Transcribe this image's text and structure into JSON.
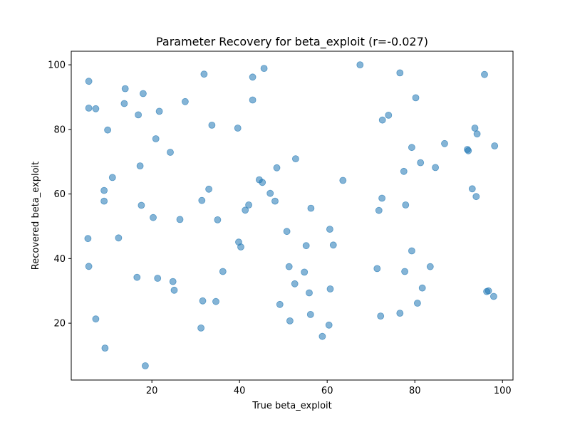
{
  "chart_data": {
    "type": "scatter",
    "title": "Parameter Recovery for beta_exploit (r=-0.027)",
    "xlabel": "True beta_exploit",
    "ylabel": "Recovered beta_exploit",
    "xlim": [
      1.6,
      102.4
    ],
    "ylim": [
      2.4,
      104.2
    ],
    "xticks": [
      20,
      40,
      60,
      80,
      100
    ],
    "yticks": [
      20,
      40,
      60,
      80,
      100
    ],
    "grid": false,
    "marker_color": "#1f77b4",
    "marker_alpha": 0.55,
    "points": [
      [
        5.6,
        94.9
      ],
      [
        5.6,
        86.6
      ],
      [
        7.2,
        86.4
      ],
      [
        9.9,
        79.8
      ],
      [
        5.4,
        46.2
      ],
      [
        5.6,
        37.6
      ],
      [
        7.2,
        21.3
      ],
      [
        9.3,
        12.3
      ],
      [
        9.1,
        61.1
      ],
      [
        9.1,
        57.8
      ],
      [
        11.0,
        65.1
      ],
      [
        12.4,
        46.4
      ],
      [
        13.9,
        92.6
      ],
      [
        13.7,
        88.0
      ],
      [
        16.9,
        84.5
      ],
      [
        18.0,
        91.1
      ],
      [
        17.3,
        68.7
      ],
      [
        17.6,
        56.5
      ],
      [
        16.6,
        34.2
      ],
      [
        18.5,
        6.8
      ],
      [
        21.7,
        85.6
      ],
      [
        20.9,
        77.1
      ],
      [
        20.3,
        52.7
      ],
      [
        21.3,
        33.9
      ],
      [
        24.2,
        72.9
      ],
      [
        24.8,
        32.9
      ],
      [
        25.1,
        30.2
      ],
      [
        26.4,
        52.1
      ],
      [
        27.6,
        88.6
      ],
      [
        31.9,
        97.1
      ],
      [
        33.7,
        81.3
      ],
      [
        31.4,
        58.0
      ],
      [
        33.0,
        61.5
      ],
      [
        31.6,
        26.9
      ],
      [
        31.2,
        18.5
      ],
      [
        34.6,
        26.7
      ],
      [
        35.0,
        52.0
      ],
      [
        36.2,
        36.0
      ],
      [
        39.6,
        80.4
      ],
      [
        39.8,
        45.1
      ],
      [
        40.3,
        43.6
      ],
      [
        41.3,
        55.0
      ],
      [
        42.1,
        56.6
      ],
      [
        43.0,
        96.2
      ],
      [
        43.0,
        89.1
      ],
      [
        45.6,
        98.9
      ],
      [
        44.5,
        64.4
      ],
      [
        45.2,
        63.6
      ],
      [
        47.0,
        60.2
      ],
      [
        48.1,
        57.8
      ],
      [
        48.5,
        68.1
      ],
      [
        50.8,
        48.4
      ],
      [
        49.2,
        25.8
      ],
      [
        51.3,
        37.5
      ],
      [
        51.5,
        20.7
      ],
      [
        52.6,
        32.2
      ],
      [
        52.8,
        70.9
      ],
      [
        54.8,
        35.8
      ],
      [
        55.2,
        44.0
      ],
      [
        56.3,
        55.6
      ],
      [
        55.9,
        29.4
      ],
      [
        56.2,
        22.7
      ],
      [
        58.9,
        15.9
      ],
      [
        60.6,
        49.1
      ],
      [
        60.7,
        30.6
      ],
      [
        60.4,
        19.4
      ],
      [
        61.4,
        44.2
      ],
      [
        63.6,
        64.2
      ],
      [
        67.5,
        100.0
      ],
      [
        71.4,
        36.9
      ],
      [
        71.8,
        54.9
      ],
      [
        72.2,
        22.2
      ],
      [
        72.5,
        58.7
      ],
      [
        72.6,
        82.9
      ],
      [
        74.0,
        84.4
      ],
      [
        76.6,
        97.5
      ],
      [
        76.6,
        23.1
      ],
      [
        77.5,
        67.0
      ],
      [
        77.7,
        36.0
      ],
      [
        77.9,
        56.6
      ],
      [
        79.3,
        74.4
      ],
      [
        79.3,
        42.4
      ],
      [
        80.2,
        89.8
      ],
      [
        80.6,
        26.2
      ],
      [
        81.3,
        69.7
      ],
      [
        81.7,
        30.9
      ],
      [
        83.5,
        37.5
      ],
      [
        84.7,
        68.2
      ],
      [
        86.8,
        75.6
      ],
      [
        92.0,
        73.8
      ],
      [
        92.2,
        73.4
      ],
      [
        93.1,
        61.6
      ],
      [
        93.7,
        80.4
      ],
      [
        94.2,
        78.6
      ],
      [
        94.0,
        59.2
      ],
      [
        95.9,
        97.0
      ],
      [
        96.4,
        29.8
      ],
      [
        96.8,
        30.0
      ],
      [
        98.0,
        28.3
      ],
      [
        98.2,
        74.9
      ]
    ]
  }
}
